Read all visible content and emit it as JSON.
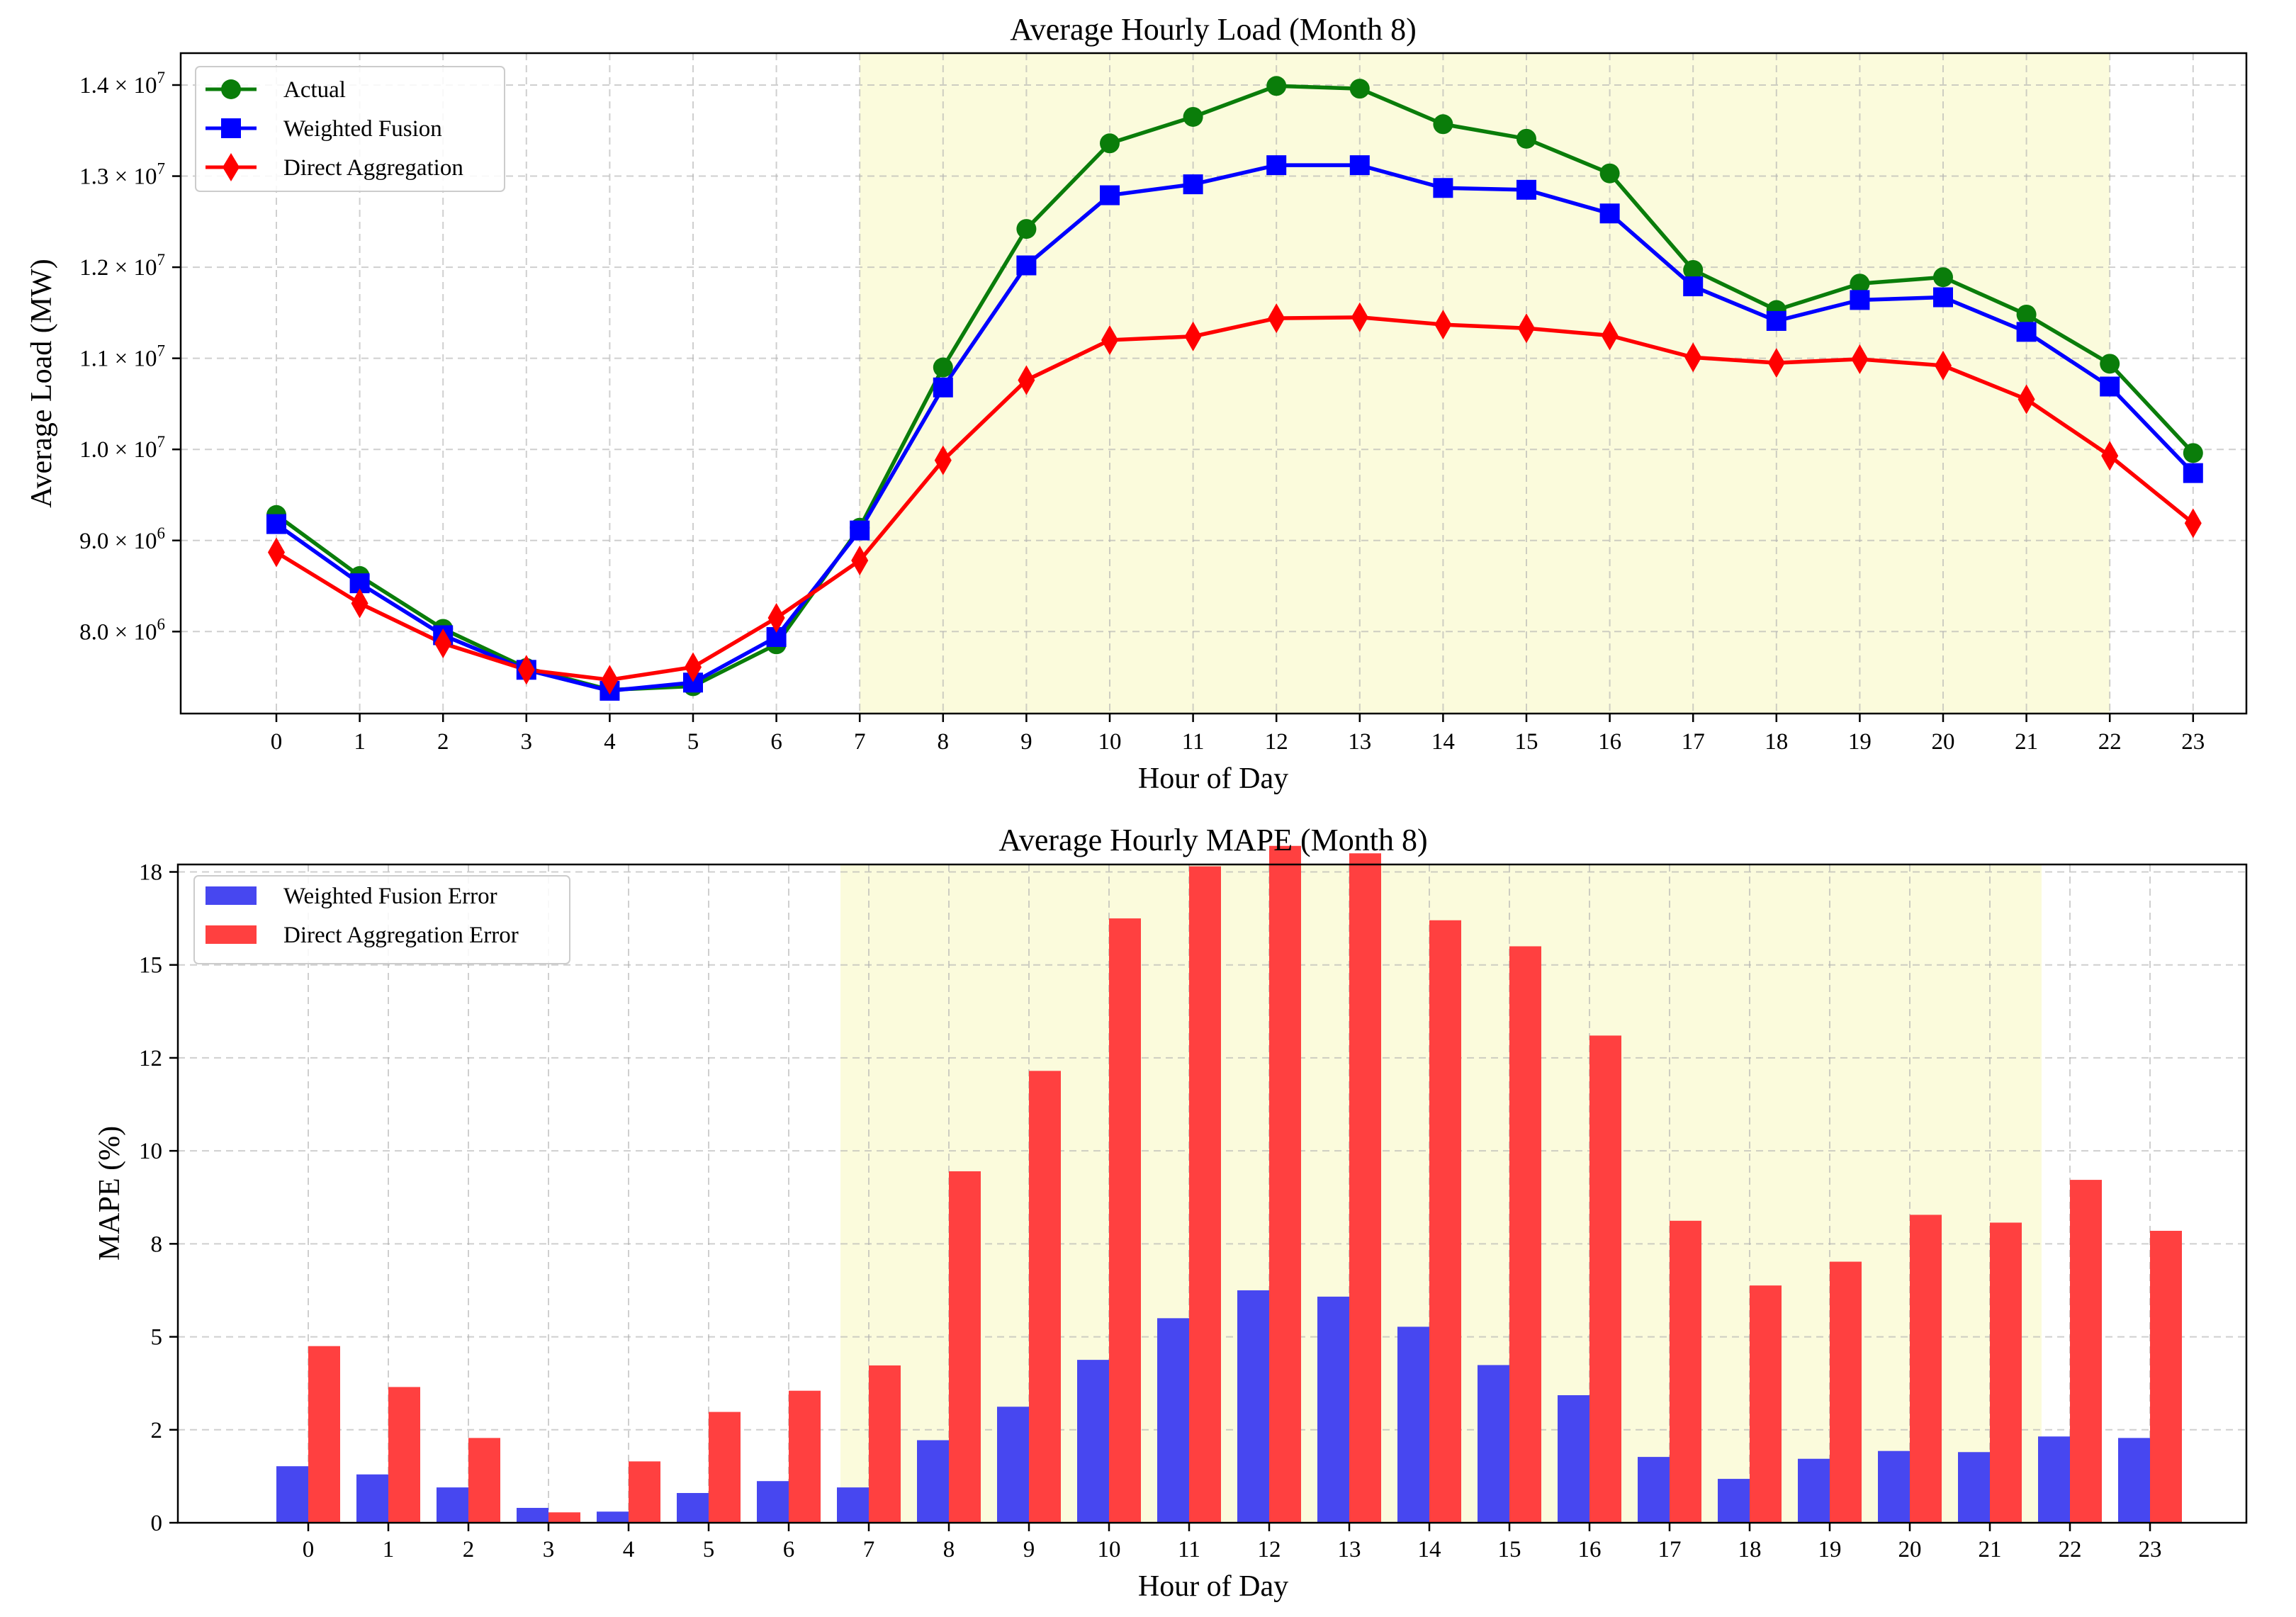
{
  "colors": {
    "actual": "#0a7d0a",
    "weighted": "#0000ff",
    "direct": "#ff0000",
    "weighted_bar": "#4747f0",
    "direct_bar": "#ff4040",
    "highlight": "#fbfbdc"
  },
  "chart_data": [
    {
      "type": "line",
      "title": "Average Hourly Load (Month 8)",
      "xlabel": "Hour of Day",
      "ylabel": "Average Load (MW)",
      "x": [
        0,
        1,
        2,
        3,
        4,
        5,
        6,
        7,
        8,
        9,
        10,
        11,
        12,
        13,
        14,
        15,
        16,
        17,
        18,
        19,
        20,
        21,
        22,
        23
      ],
      "ylim": [
        7100000,
        14350000
      ],
      "y_ticks": [
        {
          "value": 8000000,
          "mantissa": "8.0",
          "exponent": "6"
        },
        {
          "value": 9000000,
          "mantissa": "9.0",
          "exponent": "6"
        },
        {
          "value": 10000000,
          "mantissa": "1.0",
          "exponent": "7"
        },
        {
          "value": 11000000,
          "mantissa": "1.1",
          "exponent": "7"
        },
        {
          "value": 12000000,
          "mantissa": "1.2",
          "exponent": "7"
        },
        {
          "value": 13000000,
          "mantissa": "1.3",
          "exponent": "7"
        },
        {
          "value": 14000000,
          "mantissa": "1.4",
          "exponent": "7"
        }
      ],
      "highlight_range": [
        7,
        22
      ],
      "grid": true,
      "legend_position": "top-left",
      "series": [
        {
          "name": "Actual",
          "color_key": "actual",
          "marker": "circle",
          "values": [
            9280000,
            8610000,
            8030000,
            7600000,
            7360000,
            7400000,
            7860000,
            9140000,
            10900000,
            12420000,
            13360000,
            13650000,
            13990000,
            13960000,
            13570000,
            13410000,
            13030000,
            11970000,
            11530000,
            11820000,
            11890000,
            11480000,
            10940000,
            9960000
          ]
        },
        {
          "name": "Weighted Fusion",
          "color_key": "weighted",
          "marker": "square",
          "values": [
            9180000,
            8530000,
            7960000,
            7580000,
            7350000,
            7440000,
            7940000,
            9110000,
            10680000,
            12020000,
            12790000,
            12910000,
            13120000,
            13120000,
            12870000,
            12850000,
            12590000,
            11790000,
            11410000,
            11640000,
            11670000,
            11290000,
            10690000,
            9740000
          ]
        },
        {
          "name": "Direct Aggregation",
          "color_key": "direct",
          "marker": "diamond",
          "values": [
            8870000,
            8310000,
            7870000,
            7580000,
            7470000,
            7610000,
            8150000,
            8780000,
            9880000,
            10760000,
            11200000,
            11240000,
            11440000,
            11450000,
            11370000,
            11330000,
            11250000,
            11010000,
            10950000,
            10990000,
            10920000,
            10550000,
            9930000,
            9190000
          ]
        }
      ]
    },
    {
      "type": "bar",
      "title": "Average Hourly MAPE (Month 8)",
      "xlabel": "Hour of Day",
      "ylabel": "MAPE (%)",
      "categories": [
        0,
        1,
        2,
        3,
        4,
        5,
        6,
        7,
        8,
        9,
        10,
        11,
        12,
        13,
        14,
        15,
        16,
        17,
        18,
        19,
        20,
        21,
        22,
        23
      ],
      "ylim": [
        0,
        17.7
      ],
      "y_ticks": [
        {
          "value": 0,
          "label": "0"
        },
        {
          "value": 2.5,
          "label": "2"
        },
        {
          "value": 5,
          "label": "5"
        },
        {
          "value": 7.5,
          "label": "8"
        },
        {
          "value": 10,
          "label": "10"
        },
        {
          "value": 12.5,
          "label": "12"
        },
        {
          "value": 15,
          "label": "15"
        },
        {
          "value": 17.5,
          "label": "18"
        }
      ],
      "highlight_range": [
        7,
        22
      ],
      "grid": true,
      "legend_position": "top-left",
      "series": [
        {
          "name": "Weighted Fusion Error",
          "color_key": "weighted_bar",
          "values": [
            1.52,
            1.3,
            0.95,
            0.4,
            0.3,
            0.8,
            1.12,
            0.95,
            2.22,
            3.12,
            4.38,
            5.5,
            6.25,
            6.08,
            5.27,
            4.24,
            3.43,
            1.77,
            1.18,
            1.72,
            1.93,
            1.9,
            2.32,
            2.28
          ]
        },
        {
          "name": "Direct Aggregation Error",
          "color_key": "direct_bar",
          "values": [
            4.75,
            3.65,
            2.28,
            0.28,
            1.65,
            2.98,
            3.55,
            4.23,
            9.45,
            12.15,
            16.25,
            17.65,
            18.2,
            18.0,
            16.2,
            15.5,
            13.1,
            8.12,
            6.38,
            7.02,
            8.28,
            8.07,
            9.22,
            7.85
          ]
        }
      ]
    }
  ]
}
